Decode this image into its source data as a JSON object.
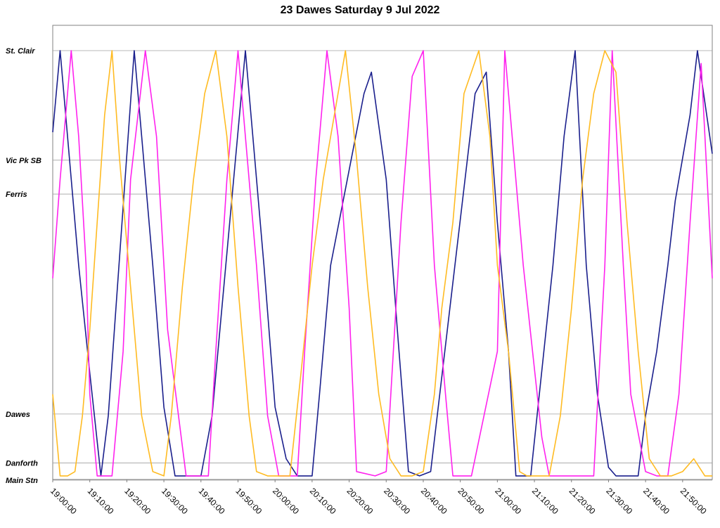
{
  "chart_data": {
    "type": "line",
    "title": "23 Dawes Saturday 9 Jul 2022",
    "xlabel": "",
    "ylabel": "",
    "x_start": "19:00:00",
    "x_end": "21:58:00",
    "x_tick_labels": [
      "19:00:00",
      "19:10:00",
      "19:20:00",
      "19:30:00",
      "19:40:00",
      "19:50:00",
      "20:00:00",
      "20:10:00",
      "20:20:00",
      "20:30:00",
      "20:40:00",
      "20:50:00",
      "21:00:00",
      "21:10:00",
      "21:20:00",
      "21:30:00",
      "21:40:00",
      "21:50:00"
    ],
    "stops": [
      {
        "name": "St. Clair",
        "pos": 1.0
      },
      {
        "name": "Vic Pk SB",
        "pos": 0.745
      },
      {
        "name": "Ferris",
        "pos": 0.666
      },
      {
        "name": "Dawes",
        "pos": 0.154
      },
      {
        "name": "Danforth",
        "pos": 0.04
      },
      {
        "name": "Main Stn",
        "pos": 0.0
      }
    ],
    "grid": true,
    "legend": "none",
    "series": [
      {
        "color": "#1a1f8c",
        "x": [
          "19:00:00",
          "19:02:00",
          "19:07:00",
          "19:10:00",
          "19:13:00",
          "19:15:00",
          "19:22:00",
          "19:24:00",
          "19:27:00",
          "19:30:00",
          "19:33:00",
          "19:36:00",
          "19:40:00",
          "19:43:00",
          "19:52:00",
          "19:54:00",
          "19:57:00",
          "20:00:00",
          "20:03:00",
          "20:06:00",
          "20:10:00",
          "20:12:00",
          "20:15:00",
          "20:24:00",
          "20:26:00",
          "20:30:00",
          "20:33:00",
          "20:36:00",
          "20:39:00",
          "20:42:00",
          "20:54:00",
          "20:57:00",
          "21:00:00",
          "21:03:00",
          "21:05:00",
          "21:08:00",
          "21:09:00",
          "21:15:00",
          "21:18:00",
          "21:21:00",
          "21:24:00",
          "21:27:00",
          "21:30:00",
          "21:32:00",
          "21:36:00",
          "21:38:00",
          "21:40:00",
          "21:43:00",
          "21:46:00",
          "21:48:00",
          "21:52:00",
          "21:54:00",
          "21:58:00"
        ],
        "y": [
          0.81,
          1.0,
          0.5,
          0.25,
          0.01,
          0.15,
          1.0,
          0.8,
          0.5,
          0.17,
          0.01,
          0.01,
          0.01,
          0.15,
          1.0,
          0.8,
          0.5,
          0.17,
          0.05,
          0.01,
          0.01,
          0.2,
          0.5,
          0.9,
          0.95,
          0.7,
          0.35,
          0.02,
          0.01,
          0.02,
          0.9,
          0.95,
          0.6,
          0.3,
          0.01,
          0.01,
          0.01,
          0.5,
          0.8,
          1.0,
          0.5,
          0.2,
          0.03,
          0.01,
          0.01,
          0.01,
          0.15,
          0.3,
          0.5,
          0.65,
          0.85,
          1.0,
          0.76
        ]
      },
      {
        "color": "#ff22ee",
        "x": [
          "19:00:00",
          "19:02:00",
          "19:05:00",
          "19:07:00",
          "19:09:00",
          "19:10:00",
          "19:12:00",
          "19:14:00",
          "19:16:00",
          "19:19:00",
          "19:21:00",
          "19:25:00",
          "19:28:00",
          "19:31:00",
          "19:36:00",
          "19:39:00",
          "19:42:00",
          "19:44:00",
          "19:47:00",
          "19:50:00",
          "19:52:00",
          "19:55:00",
          "19:58:00",
          "20:01:00",
          "20:03:00",
          "20:06:00",
          "20:08:00",
          "20:11:00",
          "20:14:00",
          "20:17:00",
          "20:20:00",
          "20:22:00",
          "20:27:00",
          "20:30:00",
          "20:34:00",
          "20:37:00",
          "20:40:00",
          "20:43:00",
          "20:46:00",
          "20:48:00",
          "20:50:00",
          "20:53:00",
          "21:00:00",
          "21:02:00",
          "21:07:00",
          "21:12:00",
          "21:14:00",
          "21:17:00",
          "21:20:00",
          "21:23:00",
          "21:26:00",
          "21:29:00",
          "21:31:00",
          "21:34:00",
          "21:36:00",
          "21:40:00",
          "21:43:00",
          "21:46:00",
          "21:49:00",
          "21:52:00",
          "21:55:00",
          "21:58:00"
        ],
        "y": [
          0.47,
          0.7,
          1.0,
          0.8,
          0.5,
          0.2,
          0.01,
          0.01,
          0.01,
          0.3,
          0.7,
          1.0,
          0.8,
          0.35,
          0.01,
          0.01,
          0.01,
          0.3,
          0.7,
          1.0,
          0.8,
          0.5,
          0.15,
          0.01,
          0.01,
          0.01,
          0.3,
          0.7,
          1.0,
          0.8,
          0.4,
          0.02,
          0.01,
          0.02,
          0.6,
          0.94,
          1.0,
          0.5,
          0.2,
          0.01,
          0.01,
          0.01,
          0.3,
          1.0,
          0.5,
          0.1,
          0.01,
          0.01,
          0.01,
          0.01,
          0.01,
          0.5,
          1.0,
          0.5,
          0.2,
          0.02,
          0.01,
          0.01,
          0.2,
          0.6,
          0.97,
          0.47
        ]
      },
      {
        "color": "#ffbb22",
        "x": [
          "19:00:00",
          "19:02:00",
          "19:04:00",
          "19:06:00",
          "19:08:00",
          "19:10:00",
          "19:12:00",
          "19:14:00",
          "19:16:00",
          "19:18:00",
          "19:21:00",
          "19:24:00",
          "19:27:00",
          "19:30:00",
          "19:32:00",
          "19:35:00",
          "19:38:00",
          "19:41:00",
          "19:44:00",
          "19:47:00",
          "19:50:00",
          "19:53:00",
          "19:55:00",
          "19:58:00",
          "20:01:00",
          "20:04:00",
          "20:07:00",
          "20:10:00",
          "20:13:00",
          "20:16:00",
          "20:19:00",
          "20:22:00",
          "20:25:00",
          "20:28:00",
          "20:31:00",
          "20:34:00",
          "20:37:00",
          "20:40:00",
          "20:43:00",
          "20:45:00",
          "20:48:00",
          "20:51:00",
          "20:55:00",
          "20:58:00",
          "21:00:00",
          "21:03:00",
          "21:06:00",
          "21:08:00",
          "21:11:00",
          "21:14:00",
          "21:17:00",
          "21:20:00",
          "21:23:00",
          "21:26:00",
          "21:29:00",
          "21:32:00",
          "21:35:00",
          "21:38:00",
          "21:41:00",
          "21:44:00",
          "21:47:00",
          "21:50:00",
          "21:53:00",
          "21:56:00",
          "21:58:00"
        ],
        "y": [
          0.2,
          0.01,
          0.01,
          0.02,
          0.15,
          0.35,
          0.6,
          0.85,
          1.0,
          0.75,
          0.45,
          0.15,
          0.02,
          0.01,
          0.15,
          0.45,
          0.7,
          0.9,
          1.0,
          0.8,
          0.45,
          0.15,
          0.02,
          0.01,
          0.01,
          0.01,
          0.25,
          0.5,
          0.7,
          0.85,
          1.0,
          0.75,
          0.45,
          0.2,
          0.05,
          0.01,
          0.01,
          0.02,
          0.2,
          0.4,
          0.6,
          0.9,
          1.0,
          0.8,
          0.5,
          0.3,
          0.02,
          0.01,
          0.01,
          0.01,
          0.15,
          0.4,
          0.7,
          0.9,
          1.0,
          0.95,
          0.6,
          0.3,
          0.05,
          0.01,
          0.01,
          0.02,
          0.05,
          0.01,
          0.01
        ]
      }
    ]
  }
}
